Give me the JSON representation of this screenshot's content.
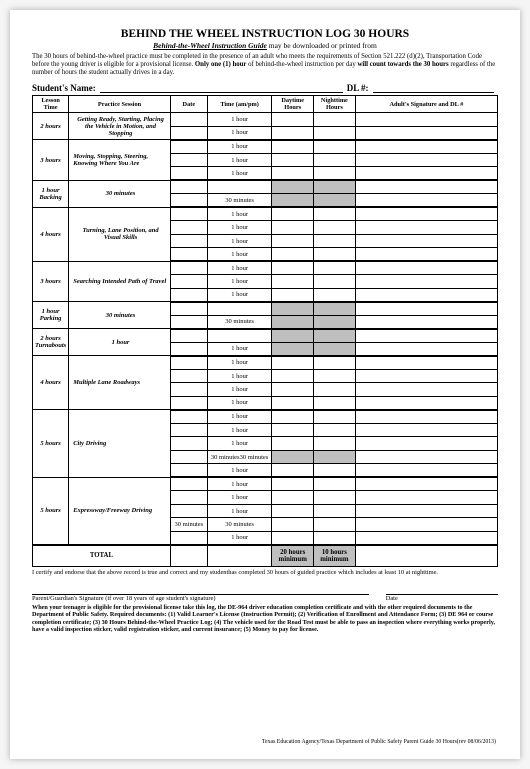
{
  "title": "BEHIND THE WHEEL INSTRUCTION LOG 30 HOURS",
  "subtitle_u": "Behind-the-Wheel Instruction Guide",
  "subtitle_rest": " may be downloaded or printed from",
  "intro": "The 30 hours of behind-the-wheel practice must be completed in the presence of an adult who meets the requirements of Section 521.222 (d)(2), Transportation Code before the young driver is eligible for a provisional license.  Only one (1) hour of behind-the-wheel instruction per day will count towards the 30 hours regardless of the number of hours the student actually drives in a day.",
  "name_label": "Student's Name:",
  "dl_label": "DL #:",
  "headers": {
    "lesson": "Lesson Time",
    "session": "Practice Session",
    "date": "Date",
    "time": "Time (am/pm)",
    "day": "Daytime Hours",
    "night": "Nighttime Hours",
    "sig": "Adult's Signature and DL #"
  },
  "t": {
    "h1": "1 hour",
    "m30": "30 minutes",
    "m3030": "30 minutes30 minutes",
    "m30sp": "30 minutes"
  },
  "groups": [
    {
      "lt": "2 hours",
      "sess": "Getting Ready, Starting, Placing the Vehicle in Motion, and Stopping",
      "sc": "sess-c",
      "rows": [
        {
          "t": "h1",
          "s": [
            0,
            0
          ],
          "tb": 0
        },
        {
          "t": "h1",
          "s": [
            0,
            0
          ],
          "tb": 1
        }
      ]
    },
    {
      "lt": "3 hours",
      "sess": "Moving, Stopping, Steering, Knowing Where You Are",
      "sc": "",
      "rows": [
        {
          "t": "h1",
          "s": [
            0,
            0
          ],
          "tb": 0
        },
        {
          "t": "h1",
          "s": [
            0,
            0
          ],
          "tb": 0
        },
        {
          "t": "h1",
          "s": [
            0,
            0
          ],
          "tb": 1
        }
      ]
    },
    {
      "lt": "1 hour",
      "sess": "30 minutes",
      "extra": "Backing",
      "sc": "sess-c",
      "rows": [
        {
          "t": "",
          "s": [
            1,
            1
          ],
          "tb": 0
        },
        {
          "t": "m30",
          "s": [
            1,
            1
          ],
          "tb": 1
        }
      ]
    },
    {
      "lt": "4 hours",
      "sess": "Turning, Lane Position, and Visual Skills",
      "sc": "sess-c",
      "rows": [
        {
          "t": "h1",
          "s": [
            0,
            0
          ],
          "tb": 0
        },
        {
          "t": "h1",
          "s": [
            0,
            0
          ],
          "tb": 0
        },
        {
          "t": "h1",
          "s": [
            0,
            0
          ],
          "tb": 0
        },
        {
          "t": "h1",
          "s": [
            0,
            0
          ],
          "tb": 1
        }
      ]
    },
    {
      "lt": "3 hours",
      "sess": "Searching Intended Path of Travel",
      "sc": "",
      "rows": [
        {
          "t": "h1",
          "s": [
            0,
            0
          ],
          "tb": 0
        },
        {
          "t": "h1",
          "s": [
            0,
            0
          ],
          "tb": 0
        },
        {
          "t": "h1",
          "s": [
            0,
            0
          ],
          "tb": 1
        }
      ]
    },
    {
      "lt": "1 hour",
      "sess": "30 minutes",
      "extra": "Parking",
      "sc": "sess-c",
      "rows": [
        {
          "t": "",
          "s": [
            1,
            1
          ],
          "tb": 0
        },
        {
          "t": "m30",
          "s": [
            1,
            1
          ],
          "tb": 1
        }
      ]
    },
    {
      "lt": "2 hours",
      "sess": "1 hour",
      "extra": "Turnabouts",
      "sc": "sess-c",
      "rows": [
        {
          "t": "",
          "s": [
            1,
            1
          ],
          "tb": 0
        },
        {
          "t": "h1",
          "s": [
            1,
            1
          ],
          "tb": 1
        }
      ]
    },
    {
      "lt": "4 hours",
      "sess": "Multiple Lane Roadways",
      "sc": "",
      "rows": [
        {
          "t": "h1",
          "s": [
            0,
            0
          ],
          "tb": 0
        },
        {
          "t": "h1",
          "s": [
            0,
            0
          ],
          "tb": 0
        },
        {
          "t": "h1",
          "s": [
            0,
            0
          ],
          "tb": 0
        },
        {
          "t": "h1",
          "s": [
            0,
            0
          ],
          "tb": 1
        }
      ]
    },
    {
      "lt": "5 hours",
      "sess": "City Driving",
      "sc": "",
      "rows": [
        {
          "t": "h1",
          "s": [
            0,
            0
          ],
          "tb": 0
        },
        {
          "t": "h1",
          "s": [
            0,
            0
          ],
          "tb": 0
        },
        {
          "t": "h1",
          "s": [
            0,
            0
          ],
          "tb": 0
        },
        {
          "t": "m3030",
          "s": [
            1,
            1
          ],
          "tb": 0
        },
        {
          "t": "h1",
          "s": [
            0,
            0
          ],
          "tb": 1
        }
      ]
    },
    {
      "lt": "5 hours",
      "sess": "Expressway/Freeway Driving",
      "sc": "",
      "rows": [
        {
          "t": "h1",
          "s": [
            0,
            0
          ],
          "tb": 0
        },
        {
          "t": "h1",
          "s": [
            0,
            0
          ],
          "tb": 0
        },
        {
          "t": "h1",
          "s": [
            0,
            0
          ],
          "tb": 0
        },
        {
          "t": "m30sp",
          "s": [
            0,
            0
          ],
          "tb": 0,
          "extra_date": "30 minutes"
        },
        {
          "t": "h1",
          "s": [
            0,
            0
          ],
          "tb": 0
        }
      ]
    }
  ],
  "total": {
    "label": "TOTAL",
    "day": "20 hours minimum",
    "night": "10 hours minimum"
  },
  "certify": "I certify and endorse that the above record is true and correct and my studenthas completed 30 hours of guided practice which includes at least 10 at nighttime.",
  "sig_label": "Parent/Guardian's Signature (if over 18 years of age student's signature)",
  "date_label": "Date",
  "footnote": "When your teenager is eligible for the provisional license take this log, the DE-964 driver education completion certificate and with the other required documents to the Department of Public Safety.  Required documents:  (1) Valid Learner's License (Instruction Permit); (2) Verification of Enrollment and Attendance Form; (3) DE 964 or course completion certificate; (3) 30 Hours Behind-the-Wheel Practice Log; (4) The vehicle used for the Road Test must be able to pass an inspection where everything works properly, have a valid inspection sticker, valid registration sticker, and current insurance; (5) Money to pay for license.",
  "footer": "Texas Education Agency/Texas Department of Public Safety   Parent Guide 30 Hours(rev 08/06/2013)"
}
